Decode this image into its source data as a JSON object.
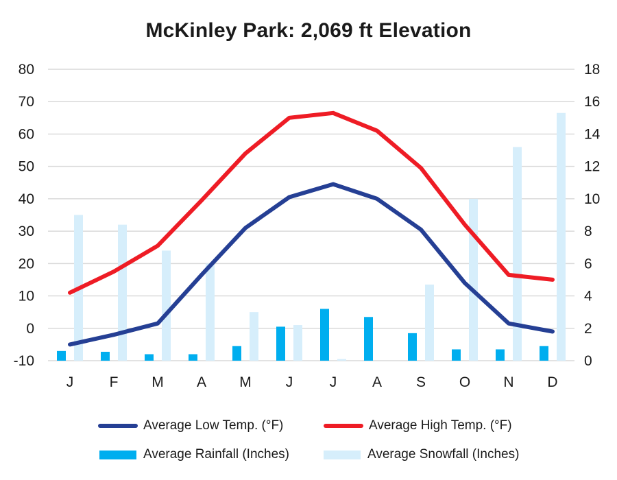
{
  "chart_data": {
    "type": "bar+line",
    "title": "McKinley Park: 2,069 ft Elevation",
    "categories": [
      "J",
      "F",
      "M",
      "A",
      "M",
      "J",
      "J",
      "A",
      "S",
      "O",
      "N",
      "D"
    ],
    "left_axis": {
      "ticks": [
        "80",
        "70",
        "60",
        "50",
        "40",
        "30",
        "20",
        "10",
        "0",
        "-10"
      ],
      "ylim": [
        -10,
        80
      ]
    },
    "right_axis": {
      "ticks": [
        "18",
        "16",
        "14",
        "12",
        "10",
        "8",
        "6",
        "4",
        "2",
        "0"
      ],
      "ylim": [
        0,
        18
      ]
    },
    "series": [
      {
        "name": "Average Low Temp. (°F)",
        "kind": "line",
        "axis": "left",
        "color": "#253f94",
        "values": [
          -5,
          -2,
          1.5,
          16.5,
          31,
          40.5,
          44.5,
          40,
          30.5,
          14,
          1.5,
          -1
        ]
      },
      {
        "name": "Average High Temp. (°F)",
        "kind": "line",
        "axis": "left",
        "color": "#ee1c25",
        "values": [
          11,
          17.5,
          25.5,
          39.5,
          54,
          65,
          66.5,
          61,
          49.5,
          32,
          16.5,
          15
        ]
      },
      {
        "name": "Average Rainfall (Inches)",
        "kind": "bar",
        "axis": "right",
        "color": "#00aeef",
        "values": [
          0.6,
          0.55,
          0.4,
          0.4,
          0.9,
          2.1,
          3.2,
          2.7,
          1.7,
          0.7,
          0.7,
          0.9
        ]
      },
      {
        "name": "Average Snowfall (Inches)",
        "kind": "bar",
        "axis": "right",
        "color": "#d6eefb",
        "values": [
          9.0,
          8.4,
          6.8,
          6.0,
          3.0,
          2.2,
          0.1,
          0,
          4.7,
          10.0,
          13.2,
          15.3
        ]
      }
    ],
    "grid": true,
    "legend_position": "bottom"
  }
}
